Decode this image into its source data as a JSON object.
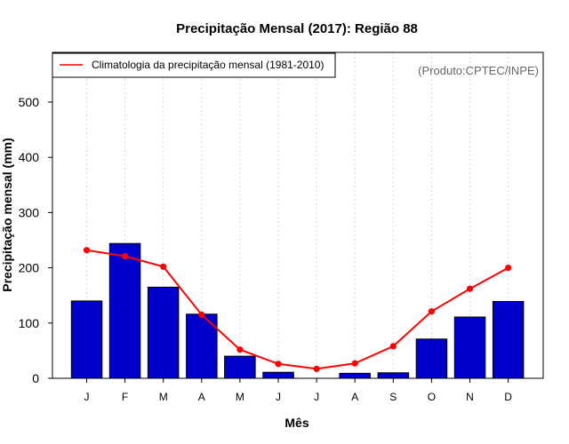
{
  "colors": {
    "bar_fill": "#0000CD",
    "bar_stroke": "#000000",
    "climatology_line": "#FF0000",
    "grid": "#d9d9d9",
    "credit": "#666666"
  },
  "chart_data": {
    "type": "bar",
    "title": "Precipitação Mensal (2017): Região 88",
    "xlabel": "Mês",
    "ylabel": "Precipitação mensal (mm)",
    "ylim": [
      0,
      590
    ],
    "yticks": [
      0,
      100,
      200,
      300,
      400,
      500
    ],
    "grid": true,
    "categories": [
      "J",
      "F",
      "M",
      "A",
      "M",
      "J",
      "J",
      "A",
      "S",
      "O",
      "N",
      "D"
    ],
    "series": [
      {
        "name": "Precipitação mensal (2017)",
        "kind": "bar",
        "values": [
          140,
          244,
          165,
          116,
          40,
          11,
          0,
          9,
          10,
          71,
          111,
          139
        ]
      },
      {
        "name": "Climatologia da precipitação mensal (1981-2010)",
        "kind": "line",
        "values": [
          232,
          221,
          202,
          115,
          52,
          26,
          17,
          27,
          58,
          121,
          162,
          200
        ]
      }
    ],
    "legend": {
      "entries": [
        "Climatologia da precipitação mensal (1981-2010)"
      ],
      "placement": "top-left"
    },
    "annotation": "(Produto:CPTEC/INPE)"
  }
}
